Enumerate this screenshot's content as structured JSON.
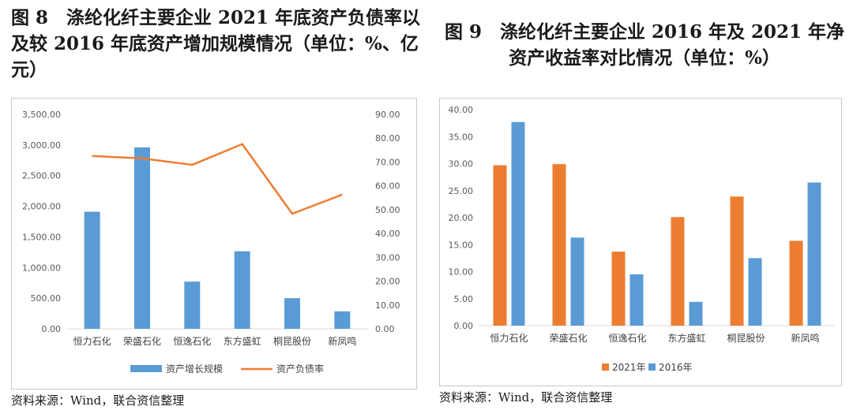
{
  "figure8": {
    "title": "图 8　涤纶化纤主要企业 2021 年底资产负债率以及较 2016 年底资产增加规模情况（单位：%、亿元）",
    "source": "资料来源：Wind，联合资信整理"
  },
  "figure9": {
    "title": "图 9　涤纶化纤主要企业 2016 年及 2021 年净资产收益率对比情况（单位：%）",
    "source": "资料来源：Wind，联合资信整理"
  },
  "chart_data": [
    {
      "type": "bar",
      "categories": [
        "恒力石化",
        "荣盛石化",
        "恒逸石化",
        "东方盛虹",
        "桐昆股份",
        "新凤鸣"
      ],
      "series": [
        {
          "name": "资产增长规模",
          "type": "bar",
          "axis": "left",
          "color": "#5b9bd5",
          "values": [
            1910,
            2960,
            770,
            1265,
            500,
            285
          ]
        },
        {
          "name": "资产负债率",
          "type": "line",
          "axis": "right",
          "color": "#ed7d31",
          "values": [
            72.5,
            71.5,
            68.8,
            77.5,
            48.3,
            56.3
          ]
        }
      ],
      "ylim": [
        0,
        3500
      ],
      "yticks": [
        "0.00",
        "500.00",
        "1,000.00",
        "1,500.00",
        "2,000.00",
        "2,500.00",
        "3,000.00",
        "3,500.00"
      ],
      "y2lim": [
        0,
        90
      ],
      "y2ticks": [
        "0.00",
        "10.00",
        "20.00",
        "30.00",
        "40.00",
        "50.00",
        "60.00",
        "70.00",
        "80.00",
        "90.00"
      ],
      "legend": "bottom",
      "grid": false
    },
    {
      "type": "bar",
      "categories": [
        "恒力石化",
        "荣盛石化",
        "恒逸石化",
        "东方盛虹",
        "桐昆股份",
        "新凤鸣"
      ],
      "series": [
        {
          "name": "2021年",
          "color": "#ed7d31",
          "values": [
            29.7,
            29.9,
            13.7,
            20.1,
            23.9,
            15.7
          ]
        },
        {
          "name": "2016年",
          "color": "#5b9bd5",
          "values": [
            37.7,
            16.3,
            9.5,
            4.4,
            12.5,
            26.5
          ]
        }
      ],
      "ylim": [
        0,
        40
      ],
      "yticks": [
        "0.00",
        "5.00",
        "10.00",
        "15.00",
        "20.00",
        "25.00",
        "30.00",
        "35.00",
        "40.00"
      ],
      "legend": "bottom",
      "grid": false
    }
  ]
}
